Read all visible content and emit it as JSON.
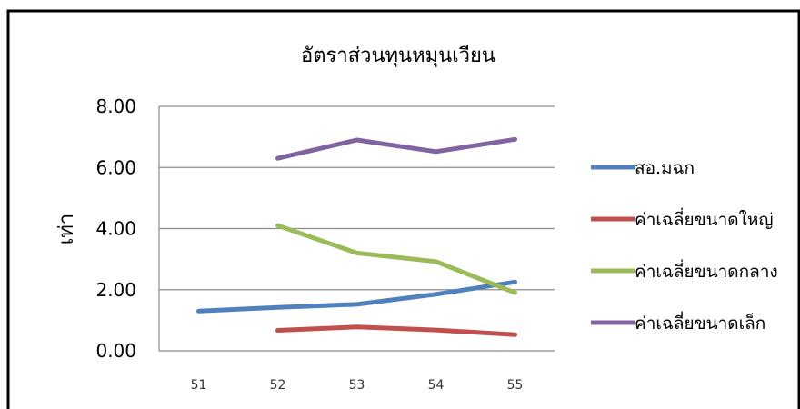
{
  "chart_data": {
    "type": "line",
    "title": "อัตราส่วนทุนหมุนเวียน",
    "ylabel": "เท่า",
    "xlabel": "",
    "categories": [
      "51",
      "52",
      "53",
      "54",
      "55"
    ],
    "ylim": [
      0,
      8
    ],
    "yticks": [
      "0.00",
      "2.00",
      "4.00",
      "6.00",
      "8.00"
    ],
    "grid": true,
    "legend_position": "right",
    "series": [
      {
        "name": "สอ.มฉก",
        "color": "#4f81bd",
        "values": [
          1.3,
          1.42,
          1.52,
          1.85,
          2.25
        ]
      },
      {
        "name": "ค่าเฉลี่ยขนาดใหญ่",
        "color": "#c0504d",
        "values": [
          null,
          0.67,
          0.78,
          0.68,
          0.53
        ]
      },
      {
        "name": "ค่าเฉลี่ยขนาดกลาง",
        "color": "#9bbb59",
        "values": [
          null,
          4.1,
          3.2,
          2.92,
          1.9
        ]
      },
      {
        "name": "ค่าเฉลี่ยขนาดเล็ก",
        "color": "#8064a2",
        "values": [
          null,
          6.3,
          6.9,
          6.52,
          6.92
        ]
      }
    ]
  }
}
